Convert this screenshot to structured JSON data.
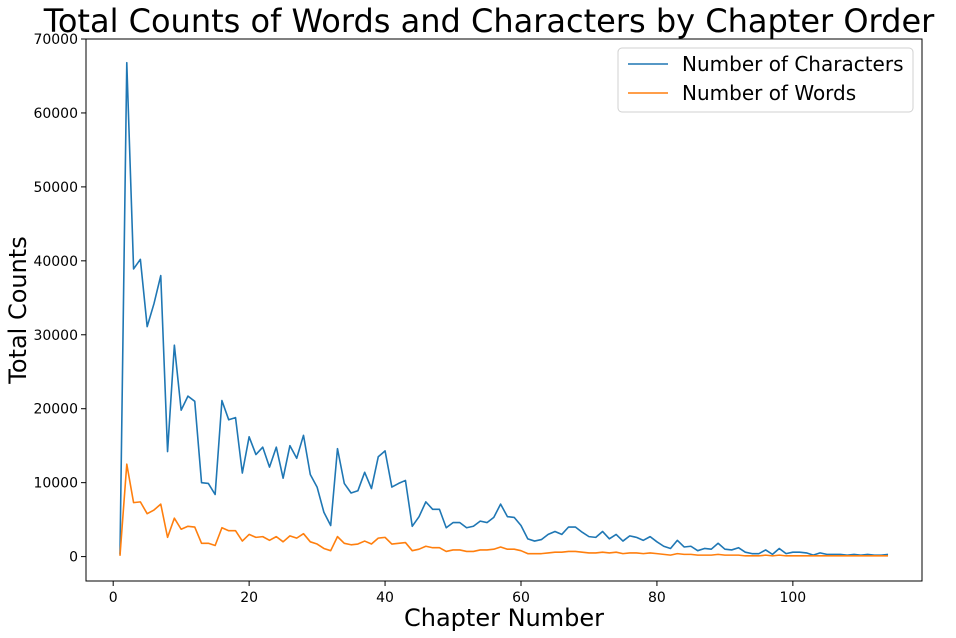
{
  "chart_data": {
    "type": "line",
    "title": "Total Counts of Words and Characters by Chapter Order",
    "xlabel": "Chapter Number",
    "ylabel": "Total Counts",
    "xlim": [
      -4,
      119
    ],
    "ylim": [
      -3300,
      70000
    ],
    "xticks": [
      0,
      20,
      40,
      60,
      80,
      100
    ],
    "yticks": [
      0,
      10000,
      20000,
      30000,
      40000,
      50000,
      60000,
      70000
    ],
    "grid": false,
    "legend_position": "top-right",
    "series": [
      {
        "name": "Number of Characters",
        "color": "#1f77b4",
        "x": [
          1,
          2,
          3,
          4,
          5,
          6,
          7,
          8,
          9,
          10,
          11,
          12,
          13,
          14,
          15,
          16,
          17,
          18,
          19,
          20,
          21,
          22,
          23,
          24,
          25,
          26,
          27,
          28,
          29,
          30,
          31,
          32,
          33,
          34,
          35,
          36,
          37,
          38,
          39,
          40,
          41,
          42,
          43,
          44,
          45,
          46,
          47,
          48,
          49,
          50,
          51,
          52,
          53,
          54,
          55,
          56,
          57,
          58,
          59,
          60,
          61,
          62,
          63,
          64,
          65,
          66,
          67,
          68,
          69,
          70,
          71,
          72,
          73,
          74,
          75,
          76,
          77,
          78,
          79,
          80,
          81,
          82,
          83,
          84,
          85,
          86,
          87,
          88,
          89,
          90,
          91,
          92,
          93,
          94,
          95,
          96,
          97,
          98,
          99,
          100,
          101,
          102,
          103,
          104,
          105,
          106,
          107,
          108,
          109,
          110,
          111,
          112,
          113,
          114
        ],
        "values": [
          300,
          66800,
          38900,
          40200,
          31100,
          34200,
          38000,
          14200,
          28600,
          19800,
          21700,
          21000,
          10000,
          9900,
          8400,
          21100,
          18500,
          18800,
          11300,
          16200,
          13800,
          14800,
          12100,
          14800,
          10600,
          15000,
          13300,
          16400,
          11100,
          9400,
          6000,
          4200,
          14600,
          9900,
          8600,
          8900,
          11400,
          9200,
          13500,
          14300,
          9400,
          9900,
          10300,
          4100,
          5400,
          7400,
          6400,
          6400,
          3900,
          4600,
          4600,
          3900,
          4100,
          4800,
          4600,
          5300,
          7100,
          5400,
          5300,
          4200,
          2400,
          2100,
          2300,
          3000,
          3400,
          3000,
          4000,
          4000,
          3300,
          2700,
          2600,
          3400,
          2400,
          3000,
          2100,
          2800,
          2600,
          2200,
          2700,
          2000,
          1400,
          1100,
          2200,
          1300,
          1400,
          800,
          1100,
          1000,
          1800,
          1000,
          900,
          1200,
          600,
          400,
          400,
          900,
          300,
          1100,
          400,
          600,
          600,
          500,
          200,
          500,
          300,
          300,
          300,
          200,
          300,
          200,
          300,
          200,
          200,
          300
        ]
      },
      {
        "name": "Number of Words",
        "color": "#ff7f0e",
        "x": [
          1,
          2,
          3,
          4,
          5,
          6,
          7,
          8,
          9,
          10,
          11,
          12,
          13,
          14,
          15,
          16,
          17,
          18,
          19,
          20,
          21,
          22,
          23,
          24,
          25,
          26,
          27,
          28,
          29,
          30,
          31,
          32,
          33,
          34,
          35,
          36,
          37,
          38,
          39,
          40,
          41,
          42,
          43,
          44,
          45,
          46,
          47,
          48,
          49,
          50,
          51,
          52,
          53,
          54,
          55,
          56,
          57,
          58,
          59,
          60,
          61,
          62,
          63,
          64,
          65,
          66,
          67,
          68,
          69,
          70,
          71,
          72,
          73,
          74,
          75,
          76,
          77,
          78,
          79,
          80,
          81,
          82,
          83,
          84,
          85,
          86,
          87,
          88,
          89,
          90,
          91,
          92,
          93,
          94,
          95,
          96,
          97,
          98,
          99,
          100,
          101,
          102,
          103,
          104,
          105,
          106,
          107,
          108,
          109,
          110,
          111,
          112,
          113,
          114
        ],
        "values": [
          100,
          12500,
          7300,
          7400,
          5800,
          6300,
          7100,
          2600,
          5200,
          3700,
          4100,
          4000,
          1800,
          1800,
          1500,
          3900,
          3500,
          3500,
          2100,
          3000,
          2600,
          2700,
          2200,
          2700,
          2000,
          2800,
          2500,
          3100,
          2000,
          1700,
          1100,
          800,
          2700,
          1800,
          1600,
          1700,
          2100,
          1700,
          2500,
          2600,
          1700,
          1800,
          1900,
          800,
          1000,
          1400,
          1200,
          1200,
          700,
          900,
          900,
          700,
          700,
          900,
          900,
          1000,
          1300,
          1000,
          1000,
          800,
          400,
          400,
          400,
          500,
          600,
          600,
          700,
          700,
          600,
          500,
          500,
          600,
          500,
          600,
          400,
          500,
          500,
          400,
          500,
          400,
          300,
          200,
          400,
          300,
          300,
          200,
          200,
          200,
          300,
          200,
          200,
          200,
          100,
          100,
          100,
          200,
          100,
          200,
          100,
          100,
          100,
          100,
          100,
          100,
          100,
          100,
          100,
          100,
          100,
          100,
          100,
          100,
          100,
          100
        ]
      }
    ]
  }
}
